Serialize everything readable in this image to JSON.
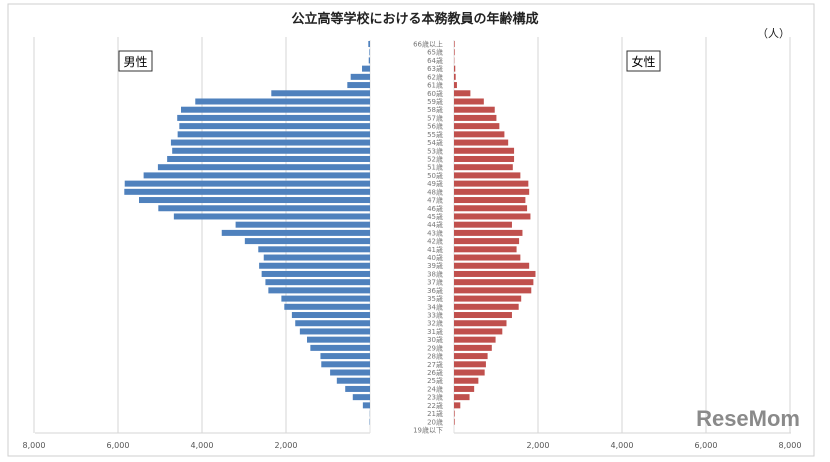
{
  "chart_data": {
    "type": "bar",
    "orientation": "horizontal-population-pyramid",
    "title": "公立高等学校における本務教員の年齢構成",
    "unit": "（人）",
    "categories": [
      "66歳以上",
      "65歳",
      "64歳",
      "63歳",
      "62歳",
      "61歳",
      "60歳",
      "59歳",
      "58歳",
      "57歳",
      "56歳",
      "55歳",
      "54歳",
      "53歳",
      "52歳",
      "51歳",
      "50歳",
      "49歳",
      "48歳",
      "47歳",
      "46歳",
      "45歳",
      "44歳",
      "43歳",
      "42歳",
      "41歳",
      "40歳",
      "39歳",
      "38歳",
      "37歳",
      "36歳",
      "35歳",
      "34歳",
      "33歳",
      "32歳",
      "31歳",
      "30歳",
      "29歳",
      "28歳",
      "27歳",
      "26歳",
      "25歳",
      "24歳",
      "23歳",
      "22歳",
      "21歳",
      "20歳",
      "19歳以下"
    ],
    "series": [
      {
        "name": "男性",
        "color": "#4F81BD",
        "values": [
          40,
          15,
          30,
          190,
          460,
          540,
          2350,
          4160,
          4500,
          4590,
          4540,
          4580,
          4740,
          4710,
          4830,
          5050,
          5390,
          5840,
          5850,
          5500,
          5040,
          4670,
          3200,
          3530,
          2980,
          2660,
          2530,
          2640,
          2580,
          2490,
          2420,
          2110,
          2040,
          1860,
          1780,
          1670,
          1500,
          1420,
          1180,
          1160,
          950,
          790,
          590,
          410,
          170,
          5,
          10,
          0
        ]
      },
      {
        "name": "女性",
        "color": "#C0504D",
        "values": [
          16,
          16,
          8,
          30,
          40,
          70,
          390,
          710,
          970,
          1010,
          1080,
          1200,
          1290,
          1430,
          1430,
          1400,
          1580,
          1770,
          1790,
          1700,
          1740,
          1820,
          1380,
          1630,
          1550,
          1490,
          1580,
          1790,
          1940,
          1890,
          1840,
          1600,
          1540,
          1380,
          1250,
          1150,
          990,
          900,
          800,
          760,
          730,
          580,
          480,
          370,
          150,
          16,
          16,
          0
        ]
      }
    ],
    "x_ticks_left": [
      "8,000",
      "6,000",
      "4,000",
      "2,000"
    ],
    "x_ticks_right": [
      "2,000",
      "4,000",
      "6,000",
      "8,000"
    ],
    "xlim": [
      0,
      8000
    ],
    "grid": true,
    "legend": {
      "male_label": "男性",
      "female_label": "女性"
    }
  },
  "watermark": "ReseMom"
}
